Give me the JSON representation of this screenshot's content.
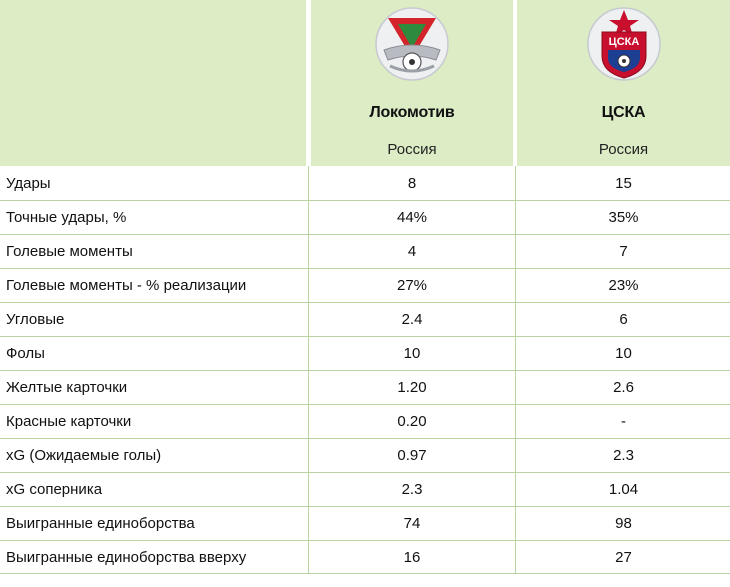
{
  "teams": [
    {
      "name": "Локомотив",
      "country": "Россия",
      "logo_icon": "lokomotiv-crest-icon",
      "logo_colors": {
        "primary": "#d4242b",
        "secondary": "#2e8b3e",
        "metal": "#b8bcc2"
      }
    },
    {
      "name": "ЦСКА",
      "country": "Россия",
      "logo_icon": "cska-crest-icon",
      "logo_text": "ЦСКА",
      "logo_colors": {
        "primary": "#c8102e",
        "secondary": "#1c3f94",
        "star": "#c8102e"
      }
    }
  ],
  "stats": [
    {
      "label": "Удары",
      "values": [
        "8",
        "15"
      ]
    },
    {
      "label": "Точные удары, %",
      "values": [
        "44%",
        "35%"
      ]
    },
    {
      "label": "Голевые моменты",
      "values": [
        "4",
        "7"
      ]
    },
    {
      "label": "Голевые моменты - % реализации",
      "values": [
        "27%",
        "23%"
      ]
    },
    {
      "label": "Угловые",
      "values": [
        "2.4",
        "6"
      ]
    },
    {
      "label": "Фолы",
      "values": [
        "10",
        "10"
      ]
    },
    {
      "label": "Желтые карточки",
      "values": [
        "1.20",
        "2.6"
      ]
    },
    {
      "label": "Красные карточки",
      "values": [
        "0.20",
        "-"
      ]
    },
    {
      "label": "xG (Ожидаемые голы)",
      "values": [
        "0.97",
        "2.3"
      ]
    },
    {
      "label": "xG соперника",
      "values": [
        "2.3",
        "1.04"
      ]
    },
    {
      "label": "Выигранные единоборства",
      "values": [
        "74",
        "98"
      ]
    },
    {
      "label": "Выигранные единоборства вверху",
      "values": [
        "16",
        "27"
      ]
    }
  ],
  "colors": {
    "header_bg": "#dcedc6",
    "grid_line": "#b9d4a0"
  }
}
